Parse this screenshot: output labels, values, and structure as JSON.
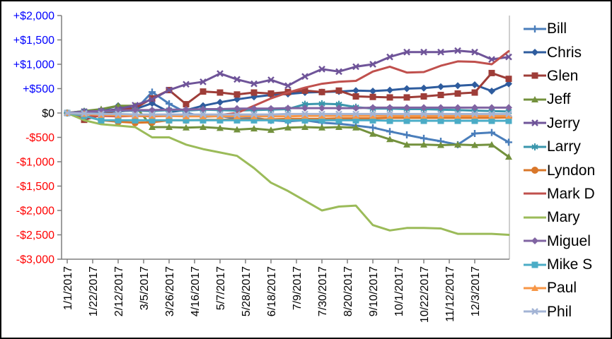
{
  "chart_data": {
    "type": "line",
    "title": "",
    "xlabel": "",
    "ylabel": "",
    "grid": false,
    "legend_position": "right",
    "y_axis": {
      "min": -3000,
      "max": 2000,
      "step": 500,
      "tick_labels": [
        "+$2,000",
        "+$1,500",
        "+$1,000",
        "+$500",
        "$0",
        "-$500",
        "-$1,000",
        "-$1,500",
        "-$2,000",
        "-$2,500",
        "-$3,000"
      ],
      "tick_values": [
        2000,
        1500,
        1000,
        500,
        0,
        -500,
        -1000,
        -1500,
        -2000,
        -2500,
        -3000
      ],
      "positive_label_color": "#0000FF",
      "zero_label_color": "#000000",
      "negative_label_color": "#FF0000"
    },
    "x_axis": {
      "tick_labels": [
        "1/1/2017",
        "1/22/2017",
        "2/12/2017",
        "3/5/2017",
        "3/26/2017",
        "4/16/2017",
        "5/7/2017",
        "5/28/2017",
        "6/18/2017",
        "7/9/2017",
        "7/30/2017",
        "8/20/2017",
        "9/10/2017",
        "10/1/2017",
        "10/22/2017",
        "11/12/2017",
        "12/3/2017"
      ],
      "label_color": "#000000"
    },
    "x_dates": [
      "1/1/2017",
      "1/15/2017",
      "1/29/2017",
      "2/12/2017",
      "2/26/2017",
      "3/12/2017",
      "3/26/2017",
      "4/9/2017",
      "4/23/2017",
      "5/7/2017",
      "5/21/2017",
      "6/4/2017",
      "6/18/2017",
      "7/2/2017",
      "7/16/2017",
      "7/30/2017",
      "8/13/2017",
      "8/27/2017",
      "9/10/2017",
      "9/24/2017",
      "10/8/2017",
      "10/22/2017",
      "11/5/2017",
      "11/19/2017",
      "12/3/2017",
      "12/17/2017",
      "12/31/2017"
    ],
    "series": [
      {
        "name": "Bill",
        "color": "#4A7EBB",
        "marker": "plus",
        "values": [
          0,
          -20,
          10,
          30,
          60,
          430,
          190,
          10,
          -80,
          -60,
          -120,
          -100,
          -150,
          -170,
          -150,
          -200,
          -220,
          -260,
          -300,
          -380,
          -450,
          -520,
          -580,
          -650,
          -420,
          -400,
          -600
        ]
      },
      {
        "name": "Chris",
        "color": "#2E5C9E",
        "marker": "diamond",
        "values": [
          0,
          40,
          60,
          150,
          80,
          200,
          20,
          60,
          150,
          220,
          280,
          330,
          370,
          390,
          420,
          430,
          440,
          460,
          450,
          470,
          500,
          510,
          540,
          560,
          580,
          450,
          600
        ]
      },
      {
        "name": "Glen",
        "color": "#9E3D38",
        "marker": "square",
        "values": [
          0,
          -140,
          -40,
          60,
          100,
          300,
          470,
          180,
          440,
          420,
          380,
          420,
          400,
          430,
          460,
          430,
          460,
          340,
          330,
          320,
          320,
          340,
          370,
          400,
          420,
          820,
          700
        ]
      },
      {
        "name": "Jeff",
        "color": "#73913D",
        "marker": "triangle",
        "values": [
          0,
          40,
          80,
          150,
          150,
          -290,
          -290,
          -300,
          -290,
          -310,
          -340,
          -320,
          -350,
          -300,
          -290,
          -300,
          -290,
          -300,
          -430,
          -540,
          -650,
          -650,
          -660,
          -650,
          -660,
          -650,
          -900
        ]
      },
      {
        "name": "Jerry",
        "color": "#6F5499",
        "marker": "x",
        "values": [
          0,
          30,
          40,
          80,
          160,
          280,
          470,
          590,
          640,
          810,
          690,
          600,
          680,
          560,
          750,
          900,
          850,
          950,
          1000,
          1150,
          1250,
          1250,
          1250,
          1280,
          1250,
          1100,
          1150
        ]
      },
      {
        "name": "Larry",
        "color": "#3A96AC",
        "marker": "asterisk",
        "values": [
          0,
          20,
          30,
          40,
          50,
          40,
          60,
          50,
          70,
          60,
          50,
          60,
          70,
          80,
          180,
          190,
          180,
          120,
          90,
          90,
          80,
          80,
          70,
          60,
          50,
          40,
          30
        ]
      },
      {
        "name": "Lyndon",
        "color": "#D9772A",
        "marker": "circle",
        "values": [
          0,
          -60,
          -150,
          -180,
          -200,
          -190,
          -150,
          -150,
          -140,
          -140,
          -130,
          -130,
          -130,
          -120,
          -120,
          -120,
          -110,
          -110,
          -110,
          -100,
          -100,
          -100,
          -100,
          -100,
          -100,
          -100,
          -90
        ]
      },
      {
        "name": "Mark D",
        "color": "#C0504D",
        "marker": "none",
        "values": [
          0,
          -80,
          -60,
          -70,
          -60,
          -70,
          -60,
          -60,
          -50,
          -40,
          0,
          150,
          300,
          420,
          520,
          600,
          640,
          660,
          850,
          950,
          830,
          840,
          970,
          1060,
          1050,
          1000,
          1270
        ]
      },
      {
        "name": "Mary",
        "color": "#9BBB59",
        "marker": "none",
        "values": [
          0,
          -150,
          -230,
          -260,
          -290,
          -500,
          -500,
          -650,
          -740,
          -810,
          -880,
          -1130,
          -1430,
          -1600,
          -1800,
          -2000,
          -1920,
          -1900,
          -2300,
          -2410,
          -2360,
          -2360,
          -2370,
          -2480,
          -2480,
          -2480,
          -2500
        ]
      },
      {
        "name": "Miguel",
        "color": "#8064A2",
        "marker": "diamond",
        "values": [
          0,
          20,
          40,
          50,
          60,
          60,
          70,
          70,
          80,
          80,
          90,
          90,
          90,
          100,
          100,
          100,
          100,
          100,
          110,
          110,
          110,
          110,
          110,
          110,
          110,
          110,
          110
        ]
      },
      {
        "name": "Mike S",
        "color": "#4BACC6",
        "marker": "square",
        "values": [
          0,
          -60,
          -150,
          -150,
          -150,
          -150,
          -150,
          -150,
          -150,
          -150,
          -150,
          -150,
          -150,
          -150,
          -150,
          -150,
          -150,
          -150,
          -150,
          -160,
          -160,
          -160,
          -160,
          -160,
          -160,
          -160,
          -160
        ]
      },
      {
        "name": "Paul",
        "color": "#F79646",
        "marker": "triangle",
        "values": [
          0,
          -20,
          -40,
          -50,
          -60,
          -60,
          -60,
          -70,
          -70,
          -70,
          -70,
          -70,
          -70,
          -70,
          -60,
          -60,
          -60,
          -60,
          -60,
          -60,
          -60,
          -60,
          -60,
          -60,
          -60,
          -60,
          -60
        ]
      },
      {
        "name": "Phil",
        "color": "#A3B4D5",
        "marker": "x",
        "values": [
          0,
          -10,
          -20,
          -20,
          -30,
          -30,
          -30,
          -30,
          -30,
          -30,
          -30,
          -30,
          -30,
          -20,
          -20,
          -20,
          -20,
          -20,
          -20,
          -20,
          -20,
          -20,
          -20,
          -20,
          -20,
          -20,
          -20
        ]
      }
    ]
  }
}
